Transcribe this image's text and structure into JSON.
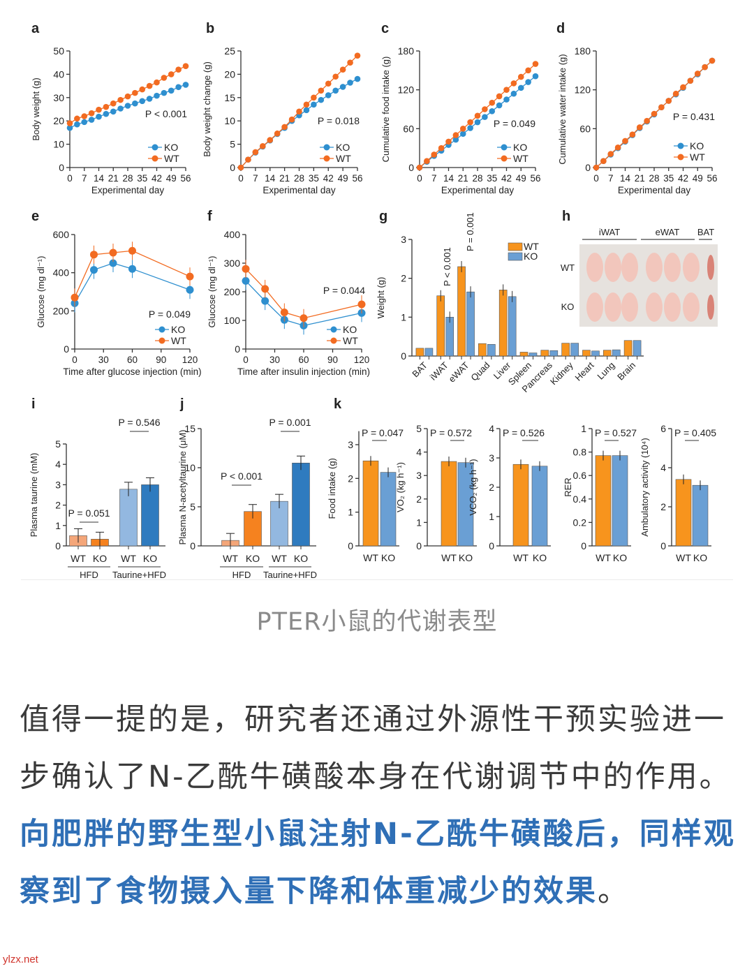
{
  "colors": {
    "ko_line": "#2e8fcf",
    "wt_line": "#f26b21",
    "wt_bar": "#f7941d",
    "ko_bar": "#6a9fd4",
    "hfd_wt": "#f4a679",
    "hfd_ko": "#f5821f",
    "tau_wt": "#93b8e0",
    "tau_ko": "#2f7bbf",
    "highlight": "#2f6fb6"
  },
  "chart_data": [
    {
      "panel": "a",
      "type": "line",
      "xlabel": "Experimental day",
      "ylabel": "Body weight (g)",
      "xlim": [
        0,
        56
      ],
      "ylim": [
        0,
        50
      ],
      "xticks": [
        0,
        7,
        14,
        21,
        28,
        35,
        42,
        49,
        56
      ],
      "yticks": [
        0,
        10,
        20,
        30,
        40,
        50
      ],
      "p": "P < 0.001",
      "x": [
        0,
        3.5,
        7,
        10.5,
        14,
        17.5,
        21,
        24.5,
        28,
        31.5,
        35,
        38.5,
        42,
        45.5,
        49,
        52.5,
        56
      ],
      "series": [
        {
          "name": "KO",
          "values": [
            17,
            18.5,
            19.5,
            20.5,
            21.8,
            23,
            24,
            25.3,
            26.5,
            27.5,
            28.5,
            29.5,
            30.8,
            32,
            33,
            34.5,
            35.5
          ]
        },
        {
          "name": "WT",
          "values": [
            19,
            21,
            22,
            23.3,
            24.8,
            26,
            27.5,
            29,
            30.5,
            32,
            33.5,
            35,
            36.5,
            38.5,
            40,
            42,
            43.5
          ]
        }
      ]
    },
    {
      "panel": "b",
      "type": "line",
      "xlabel": "Experimental day",
      "ylabel": "Body weight change (g)",
      "xlim": [
        0,
        56
      ],
      "ylim": [
        0,
        25
      ],
      "xticks": [
        0,
        7,
        14,
        21,
        28,
        35,
        42,
        49,
        56
      ],
      "yticks": [
        0,
        5,
        10,
        15,
        20,
        25
      ],
      "p": "P = 0.018",
      "x": [
        0,
        3.5,
        7,
        10.5,
        14,
        17.5,
        21,
        24.5,
        28,
        31.5,
        35,
        38.5,
        42,
        45.5,
        49,
        52.5,
        56
      ],
      "series": [
        {
          "name": "KO",
          "values": [
            0,
            1.7,
            3.2,
            4.5,
            5.8,
            7.2,
            8.5,
            10,
            11.2,
            12.3,
            13.5,
            14.5,
            15.5,
            16.5,
            17.3,
            18.2,
            19
          ]
        },
        {
          "name": "WT",
          "values": [
            0,
            1.7,
            3.3,
            4.6,
            5.9,
            7.3,
            8.7,
            10.3,
            12,
            13.5,
            15,
            16.5,
            18,
            19.5,
            21,
            22.5,
            24
          ]
        }
      ]
    },
    {
      "panel": "c",
      "type": "line",
      "xlabel": "Experimental day",
      "ylabel": "Cumulative food intake (g)",
      "xlim": [
        0,
        56
      ],
      "ylim": [
        0,
        180
      ],
      "xticks": [
        0,
        7,
        14,
        21,
        28,
        35,
        42,
        49,
        56
      ],
      "yticks": [
        0,
        60,
        120,
        180
      ],
      "p": "P = 0.049",
      "x": [
        0,
        3.5,
        7,
        10.5,
        14,
        17.5,
        21,
        24.5,
        28,
        31.5,
        35,
        38.5,
        42,
        45.5,
        49,
        52.5,
        56
      ],
      "series": [
        {
          "name": "KO",
          "values": [
            0,
            9,
            18,
            26,
            35,
            43,
            52,
            61,
            70,
            78,
            87,
            96,
            105,
            114,
            123,
            132,
            141
          ]
        },
        {
          "name": "WT",
          "values": [
            0,
            10,
            20,
            30,
            40,
            50,
            60,
            70,
            80,
            90,
            100,
            110,
            120,
            130,
            140,
            150,
            160
          ]
        }
      ]
    },
    {
      "panel": "d",
      "type": "line",
      "xlabel": "Experimental day",
      "ylabel": "Cumulative water intake (g)",
      "xlim": [
        0,
        56
      ],
      "ylim": [
        0,
        180
      ],
      "xticks": [
        0,
        7,
        14,
        21,
        28,
        35,
        42,
        49,
        56
      ],
      "yticks": [
        0,
        60,
        120,
        180
      ],
      "p": "P = 0.431",
      "x": [
        0,
        3.5,
        7,
        10.5,
        14,
        17.5,
        21,
        24.5,
        28,
        31.5,
        35,
        38.5,
        42,
        45.5,
        49,
        52.5,
        56
      ],
      "series": [
        {
          "name": "KO",
          "values": [
            0,
            10,
            20,
            30,
            40,
            50,
            61,
            71,
            82,
            93,
            103,
            113,
            123,
            134,
            144,
            155,
            165
          ]
        },
        {
          "name": "WT",
          "values": [
            0,
            10,
            21,
            31,
            41,
            51,
            62,
            72,
            83,
            93,
            103,
            114,
            124,
            134,
            145,
            155,
            165
          ]
        }
      ]
    },
    {
      "panel": "e",
      "type": "line",
      "xlabel": "Time after glucose injection (min)",
      "ylabel": "Glucose (mg dl⁻¹)",
      "xlim": [
        0,
        120
      ],
      "ylim": [
        0,
        600
      ],
      "xticks": [
        0,
        30,
        60,
        90,
        120
      ],
      "yticks": [
        0,
        200,
        400,
        600
      ],
      "p": "P = 0.049",
      "x": [
        0,
        20,
        40,
        60,
        120
      ],
      "series": [
        {
          "name": "KO",
          "values": [
            240,
            415,
            450,
            420,
            310
          ]
        },
        {
          "name": "WT",
          "values": [
            270,
            495,
            505,
            515,
            380
          ]
        }
      ]
    },
    {
      "panel": "f",
      "type": "line",
      "xlabel": "Time after insulin injection (min)",
      "ylabel": "Glucose (mg dl⁻¹)",
      "xlim": [
        0,
        120
      ],
      "ylim": [
        0,
        400
      ],
      "xticks": [
        0,
        30,
        60,
        90,
        120
      ],
      "yticks": [
        0,
        100,
        200,
        300,
        400
      ],
      "p": "P = 0.044",
      "x": [
        0,
        20,
        40,
        60,
        120
      ],
      "series": [
        {
          "name": "KO",
          "values": [
            238,
            168,
            102,
            82,
            126
          ]
        },
        {
          "name": "WT",
          "values": [
            280,
            210,
            128,
            108,
            156
          ]
        }
      ]
    },
    {
      "panel": "g",
      "type": "bar",
      "ylabel": "Weight (g)",
      "ylim": [
        0,
        3
      ],
      "yticks": [
        0,
        1,
        2,
        3
      ],
      "categories": [
        "BAT",
        "iWAT",
        "eWAT",
        "Quad",
        "Liver",
        "Spleen",
        "Pancreas",
        "Kidney",
        "Heart",
        "Lung",
        "Brain"
      ],
      "series": [
        {
          "name": "WT",
          "values": [
            0.2,
            1.55,
            2.3,
            0.32,
            1.7,
            0.1,
            0.15,
            0.33,
            0.15,
            0.15,
            0.4
          ]
        },
        {
          "name": "KO",
          "values": [
            0.2,
            1.0,
            1.65,
            0.3,
            1.53,
            0.08,
            0.14,
            0.33,
            0.13,
            0.16,
            0.4
          ]
        }
      ],
      "annotations": [
        "P < 0.001",
        "P = 0.001"
      ]
    },
    {
      "panel": "i",
      "type": "bar",
      "ylabel": "Plasma taurine (mM)",
      "ylim": [
        0,
        5
      ],
      "yticks": [
        0,
        1,
        2,
        3,
        4,
        5
      ],
      "categories": [
        "WT",
        "KO",
        "WT",
        "KO"
      ],
      "groups": [
        "HFD",
        "Taurine+HFD"
      ],
      "values": [
        0.5,
        0.33,
        2.78,
        3.0
      ],
      "p": [
        "P = 0.051",
        "P = 0.546"
      ]
    },
    {
      "panel": "j",
      "type": "bar",
      "ylabel": "Plasma N-acetyltaurine (μM)",
      "ylim": [
        0,
        15
      ],
      "yticks": [
        0,
        5,
        10,
        15
      ],
      "categories": [
        "WT",
        "KO",
        "WT",
        "KO"
      ],
      "groups": [
        "HFD",
        "Taurine+HFD"
      ],
      "values": [
        0.7,
        4.4,
        5.7,
        10.6
      ],
      "p": [
        "P < 0.001",
        "P = 0.001"
      ]
    },
    {
      "panel": "k",
      "type": "bar",
      "categories": [
        "WT",
        "KO"
      ],
      "subplots": [
        {
          "ylabel": "Food intake (g)",
          "ylim": [
            0,
            3.4
          ],
          "yticks": [
            0,
            1,
            2,
            3
          ],
          "values": [
            2.52,
            2.18
          ],
          "p": "P = 0.047"
        },
        {
          "ylabel": "VO₂ (kg h⁻¹)",
          "ylim": [
            0,
            5
          ],
          "yticks": [
            0,
            1,
            2,
            3,
            4,
            5
          ],
          "values": [
            3.6,
            3.55
          ],
          "p": "P = 0.572"
        },
        {
          "ylabel": "VCO₂ (kg h⁻¹)",
          "ylim": [
            0,
            4
          ],
          "yticks": [
            0,
            1,
            2,
            3,
            4
          ],
          "values": [
            2.78,
            2.72
          ],
          "p": "P = 0.526"
        },
        {
          "ylabel": "RER",
          "ylim": [
            0,
            1.0
          ],
          "yticks": [
            0,
            0.2,
            0.4,
            0.6,
            0.8,
            1.0
          ],
          "values": [
            0.77,
            0.77
          ],
          "p": "P = 0.527"
        },
        {
          "ylabel": "Ambulatory activity (10⁴)",
          "ylim": [
            0,
            6
          ],
          "yticks": [
            0,
            2,
            4,
            6
          ],
          "values": [
            3.4,
            3.1
          ],
          "p": "P = 0.405"
        }
      ]
    }
  ],
  "photo": {
    "panel": "h",
    "columns": [
      "iWAT",
      "eWAT",
      "BAT"
    ],
    "rows": [
      "WT",
      "KO"
    ]
  },
  "caption": "PTER小鼠的代谢表型",
  "paragraph": {
    "normal_1": "值得一提的是，研究者还通过外源性干预实验进一步确认了N-乙酰牛磺酸本身在代谢调节中的作用。",
    "highlight": "向肥胖的野生型小鼠注射N-乙酰牛磺酸后，同样观察到了食物摄入量下降和体重减少的效果",
    "normal_2": "。"
  },
  "watermark": "ylzx.net"
}
